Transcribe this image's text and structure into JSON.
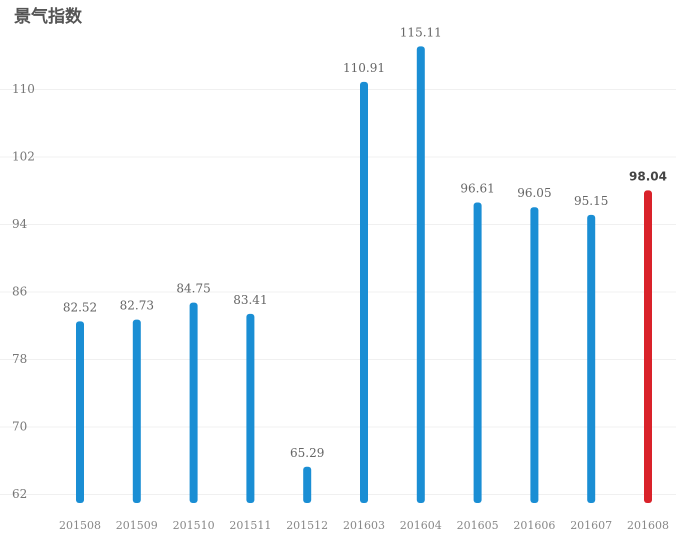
{
  "chart_data": {
    "type": "bar",
    "title": "景气指数",
    "categories": [
      "201508",
      "201509",
      "201510",
      "201511",
      "201512",
      "201603",
      "201604",
      "201605",
      "201606",
      "201607",
      "201608"
    ],
    "values": [
      82.52,
      82.73,
      84.75,
      83.41,
      65.29,
      110.91,
      115.11,
      96.61,
      96.05,
      95.15,
      98.04
    ],
    "colors": [
      "#1a8ed4",
      "#1a8ed4",
      "#1a8ed4",
      "#1a8ed4",
      "#1a8ed4",
      "#1a8ed4",
      "#1a8ed4",
      "#1a8ed4",
      "#1a8ed4",
      "#1a8ed4",
      "#d9222a"
    ],
    "ylim": [
      61,
      118
    ],
    "yticks": [
      62,
      70,
      78,
      86,
      94,
      102,
      110
    ],
    "grid": true
  }
}
